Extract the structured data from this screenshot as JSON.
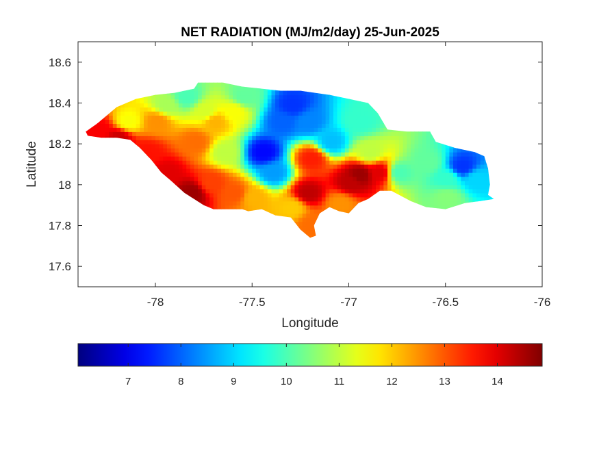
{
  "chart_data": {
    "type": "heatmap",
    "title": "NET RADIATION (MJ/m2/day) 25-Jun-2025",
    "xlabel": "Longitude",
    "ylabel": "Latitude",
    "xlim": [
      -78.4,
      -76
    ],
    "ylim": [
      17.5,
      18.7
    ],
    "x_ticks": [
      -78,
      -77.5,
      -77,
      -76.5,
      -76
    ],
    "x_tick_labels": [
      "-78",
      "-77.5",
      "-77",
      "-76.5",
      "-76"
    ],
    "y_ticks": [
      17.6,
      17.8,
      18,
      18.2,
      18.4,
      18.6
    ],
    "y_tick_labels": [
      "17.6",
      "17.8",
      "18",
      "18.2",
      "18.4",
      "18.6"
    ],
    "colormap": "jet",
    "clim": [
      6.05,
      14.85
    ],
    "colorbar": {
      "location": "south",
      "ticks": [
        7,
        8,
        9,
        10,
        11,
        12,
        13,
        14
      ],
      "tick_labels": [
        "7",
        "8",
        "9",
        "10",
        "11",
        "12",
        "13",
        "14"
      ]
    },
    "grid": false,
    "region_outline": [
      [
        -78.36,
        18.26
      ],
      [
        -78.3,
        18.3
      ],
      [
        -78.25,
        18.34
      ],
      [
        -78.2,
        18.38
      ],
      [
        -78.1,
        18.42
      ],
      [
        -78.0,
        18.44
      ],
      [
        -77.9,
        18.45
      ],
      [
        -77.8,
        18.47
      ],
      [
        -77.78,
        18.5
      ],
      [
        -77.65,
        18.5
      ],
      [
        -77.55,
        18.48
      ],
      [
        -77.45,
        18.47
      ],
      [
        -77.35,
        18.46
      ],
      [
        -77.25,
        18.46
      ],
      [
        -77.1,
        18.44
      ],
      [
        -77.0,
        18.42
      ],
      [
        -76.9,
        18.4
      ],
      [
        -76.85,
        18.35
      ],
      [
        -76.8,
        18.27
      ],
      [
        -76.7,
        18.26
      ],
      [
        -76.58,
        18.26
      ],
      [
        -76.55,
        18.21
      ],
      [
        -76.45,
        18.18
      ],
      [
        -76.35,
        18.16
      ],
      [
        -76.3,
        18.14
      ],
      [
        -76.28,
        18.08
      ],
      [
        -76.27,
        18.0
      ],
      [
        -76.28,
        17.95
      ],
      [
        -76.25,
        17.93
      ],
      [
        -76.32,
        17.92
      ],
      [
        -76.4,
        17.91
      ],
      [
        -76.5,
        17.88
      ],
      [
        -76.6,
        17.89
      ],
      [
        -76.68,
        17.92
      ],
      [
        -76.78,
        17.97
      ],
      [
        -76.84,
        17.97
      ],
      [
        -76.9,
        17.93
      ],
      [
        -76.95,
        17.91
      ],
      [
        -77.0,
        17.86
      ],
      [
        -77.05,
        17.87
      ],
      [
        -77.1,
        17.89
      ],
      [
        -77.15,
        17.86
      ],
      [
        -77.18,
        17.8
      ],
      [
        -77.17,
        17.75
      ],
      [
        -77.2,
        17.74
      ],
      [
        -77.25,
        17.78
      ],
      [
        -77.3,
        17.84
      ],
      [
        -77.38,
        17.85
      ],
      [
        -77.45,
        17.88
      ],
      [
        -77.52,
        17.87
      ],
      [
        -77.55,
        17.88
      ],
      [
        -77.6,
        17.88
      ],
      [
        -77.7,
        17.88
      ],
      [
        -77.75,
        17.9
      ],
      [
        -77.8,
        17.93
      ],
      [
        -77.85,
        17.96
      ],
      [
        -77.92,
        18.02
      ],
      [
        -77.97,
        18.06
      ],
      [
        -78.02,
        18.12
      ],
      [
        -78.08,
        18.18
      ],
      [
        -78.13,
        18.22
      ],
      [
        -78.2,
        18.23
      ],
      [
        -78.28,
        18.23
      ],
      [
        -78.35,
        18.24
      ]
    ],
    "value_anchors": [
      [
        -78.3,
        18.26,
        13.8
      ],
      [
        -78.2,
        18.22,
        14.2
      ],
      [
        -78.05,
        18.15,
        13.6
      ],
      [
        -77.95,
        18.05,
        14.0
      ],
      [
        -77.82,
        17.95,
        14.6
      ],
      [
        -77.72,
        18.0,
        13.2
      ],
      [
        -77.6,
        17.95,
        13.0
      ],
      [
        -77.5,
        17.93,
        12.2
      ],
      [
        -77.45,
        18.15,
        7.2
      ],
      [
        -77.4,
        18.05,
        8.5
      ],
      [
        -77.35,
        18.3,
        8.0
      ],
      [
        -77.3,
        18.38,
        7.6
      ],
      [
        -77.22,
        18.3,
        8.3
      ],
      [
        -77.2,
        18.12,
        13.5
      ],
      [
        -77.22,
        17.95,
        14.3
      ],
      [
        -77.2,
        17.8,
        12.8
      ],
      [
        -77.05,
        17.9,
        12.5
      ],
      [
        -77.0,
        18.0,
        14.3
      ],
      [
        -76.95,
        18.04,
        14.6
      ],
      [
        -76.85,
        18.05,
        14.0
      ],
      [
        -77.1,
        18.2,
        8.8
      ],
      [
        -76.95,
        18.3,
        9.8
      ],
      [
        -76.75,
        18.05,
        10.0
      ],
      [
        -76.6,
        18.1,
        10.2
      ],
      [
        -76.5,
        18.02,
        9.8
      ],
      [
        -76.42,
        18.08,
        7.6
      ],
      [
        -76.35,
        18.02,
        9.0
      ],
      [
        -76.5,
        17.93,
        10.5
      ],
      [
        -77.95,
        18.38,
        10.8
      ],
      [
        -77.85,
        18.42,
        10.0
      ],
      [
        -77.75,
        18.35,
        11.2
      ],
      [
        -77.7,
        18.3,
        12.2
      ],
      [
        -77.6,
        18.35,
        11.5
      ],
      [
        -77.55,
        18.42,
        10.2
      ],
      [
        -77.65,
        18.15,
        11.0
      ],
      [
        -77.8,
        18.2,
        12.8
      ],
      [
        -78.0,
        18.3,
        12.5
      ],
      [
        -78.15,
        18.3,
        11.5
      ],
      [
        -77.3,
        17.88,
        12.0
      ],
      [
        -76.9,
        18.15,
        11.0
      ]
    ]
  }
}
